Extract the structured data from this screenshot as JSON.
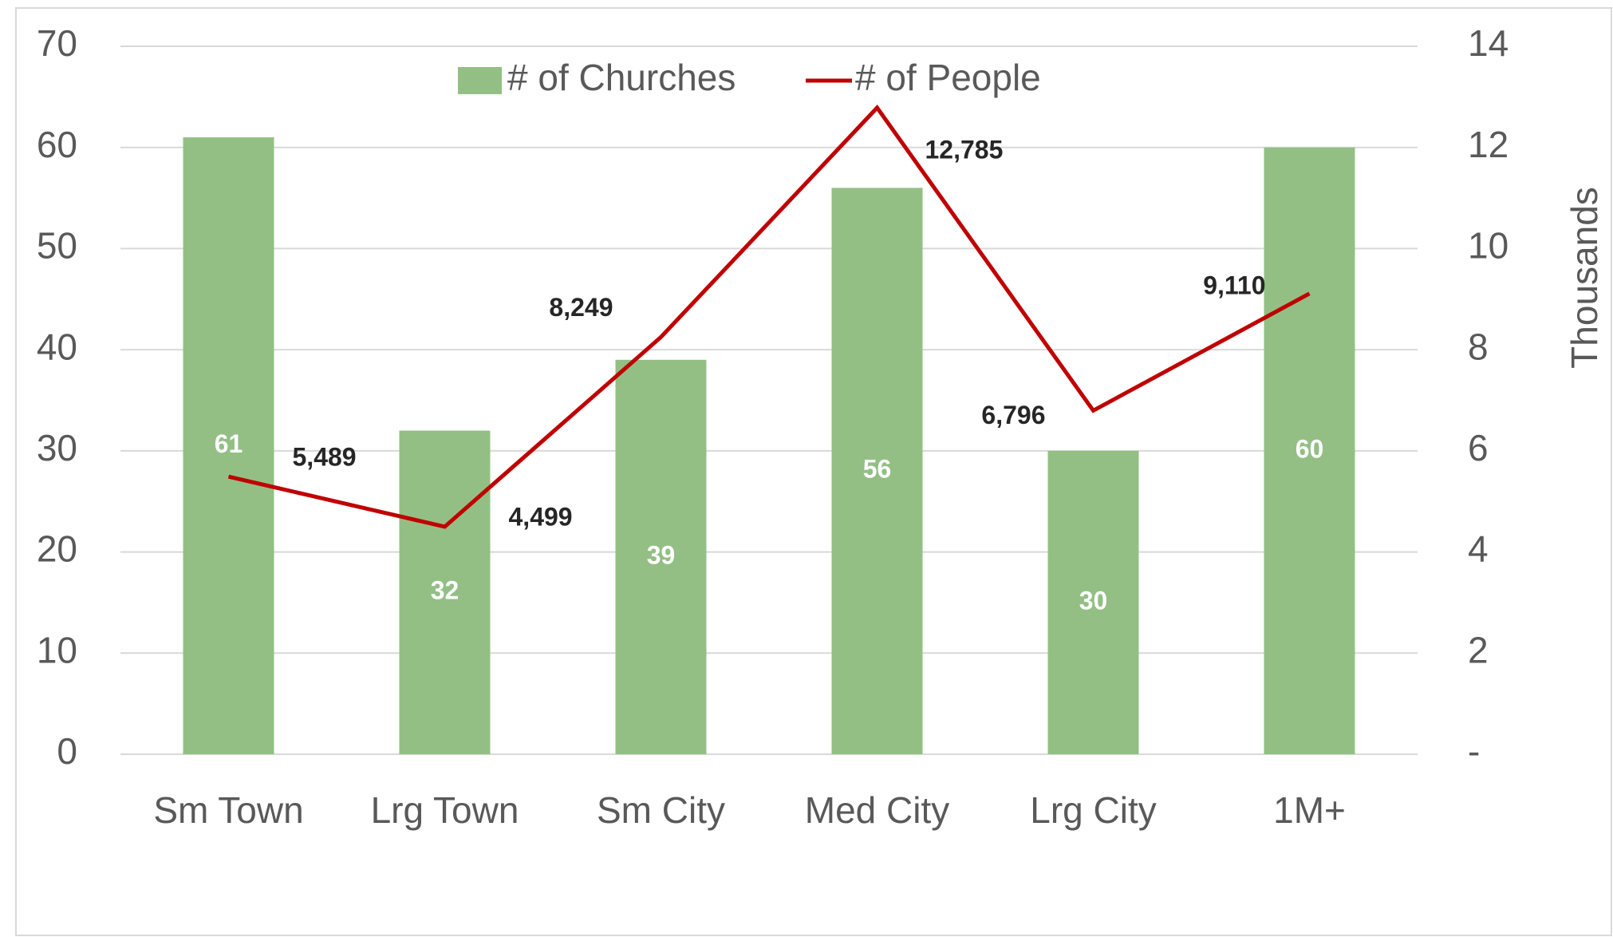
{
  "chart_data": {
    "type": "bar-line",
    "categories": [
      "Sm Town",
      "Lrg Town",
      "Sm City",
      "Med City",
      "Lrg City",
      "1M+"
    ],
    "series": [
      {
        "name": "# of Churches",
        "type": "bar",
        "color": "#93bf85",
        "values": [
          61,
          32,
          39,
          56,
          30,
          60
        ]
      },
      {
        "name": "# of People",
        "type": "line",
        "axis": "y2",
        "color": "#c00000",
        "values": [
          5.489,
          4.499,
          8.249,
          12.785,
          6.796,
          9.11
        ],
        "value_labels": [
          "5,489",
          "4,499",
          "8,249",
          "12,785",
          "6,796",
          "9,110"
        ]
      }
    ],
    "ylim": [
      0,
      70
    ],
    "yticks": [
      0,
      10,
      20,
      30,
      40,
      50,
      60,
      70
    ],
    "y2lim": [
      0,
      14
    ],
    "y2ticks": [
      {
        "value": 0,
        "label": "-"
      },
      2,
      4,
      6,
      8,
      10,
      12,
      14
    ],
    "y2label": "Thousands",
    "grid": true,
    "legend": "top"
  }
}
